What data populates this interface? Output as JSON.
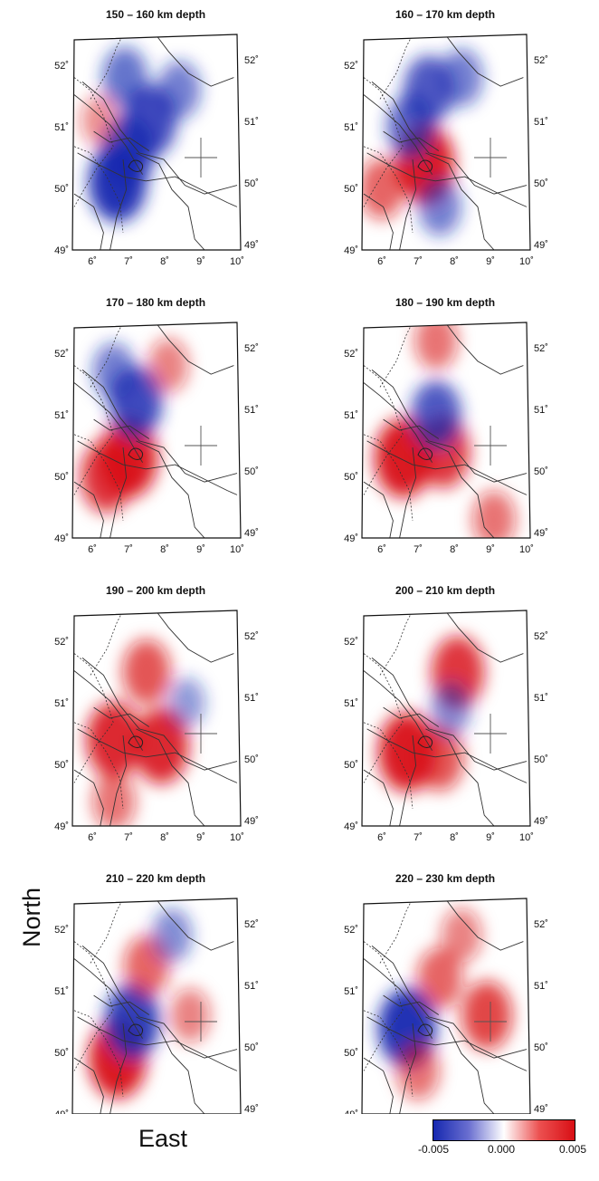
{
  "figure": {
    "north_label": "North",
    "east_label": "East",
    "panels": [
      {
        "title": "150 – 160 km depth",
        "anomalies": [
          {
            "lon": 6.7,
            "lat": 50.1,
            "value": -0.005
          },
          {
            "lon": 7.0,
            "lat": 50.6,
            "value": -0.004
          },
          {
            "lon": 7.6,
            "lat": 51.1,
            "value": -0.004
          },
          {
            "lon": 6.9,
            "lat": 51.8,
            "value": -0.0025
          },
          {
            "lon": 8.4,
            "lat": 51.6,
            "value": -0.002
          },
          {
            "lon": 6.2,
            "lat": 51.1,
            "value": 0.001
          }
        ]
      },
      {
        "title": "160 – 170 km depth",
        "anomalies": [
          {
            "lon": 7.2,
            "lat": 50.4,
            "value": 0.005
          },
          {
            "lon": 6.0,
            "lat": 50.0,
            "value": 0.0025
          },
          {
            "lon": 7.3,
            "lat": 51.6,
            "value": -0.0035
          },
          {
            "lon": 6.8,
            "lat": 51.0,
            "value": -0.003
          },
          {
            "lon": 8.2,
            "lat": 51.8,
            "value": -0.002
          },
          {
            "lon": 7.6,
            "lat": 49.7,
            "value": -0.002
          }
        ]
      },
      {
        "title": "170 – 180 km depth",
        "anomalies": [
          {
            "lon": 7.0,
            "lat": 50.3,
            "value": 0.005
          },
          {
            "lon": 6.4,
            "lat": 50.0,
            "value": 0.004
          },
          {
            "lon": 7.2,
            "lat": 51.2,
            "value": -0.004
          },
          {
            "lon": 6.6,
            "lat": 51.7,
            "value": -0.002
          },
          {
            "lon": 8.1,
            "lat": 51.8,
            "value": 0.0015
          }
        ]
      },
      {
        "title": "180 – 190 km depth",
        "anomalies": [
          {
            "lon": 6.6,
            "lat": 50.3,
            "value": 0.005
          },
          {
            "lon": 7.7,
            "lat": 50.4,
            "value": 0.004
          },
          {
            "lon": 7.5,
            "lat": 51.0,
            "value": -0.0035
          },
          {
            "lon": 9.1,
            "lat": 49.3,
            "value": 0.002
          },
          {
            "lon": 7.5,
            "lat": 52.2,
            "value": 0.002
          }
        ]
      },
      {
        "title": "190 – 200 km depth",
        "anomalies": [
          {
            "lon": 6.6,
            "lat": 50.4,
            "value": 0.0045
          },
          {
            "lon": 7.9,
            "lat": 50.3,
            "value": 0.0045
          },
          {
            "lon": 7.5,
            "lat": 51.5,
            "value": 0.003
          },
          {
            "lon": 6.6,
            "lat": 49.4,
            "value": 0.002
          },
          {
            "lon": 8.6,
            "lat": 51.0,
            "value": -0.001
          }
        ]
      },
      {
        "title": "200 – 210 km depth",
        "anomalies": [
          {
            "lon": 6.7,
            "lat": 50.2,
            "value": 0.005
          },
          {
            "lon": 8.1,
            "lat": 51.5,
            "value": 0.004
          },
          {
            "lon": 7.6,
            "lat": 50.1,
            "value": 0.003
          },
          {
            "lon": 7.9,
            "lat": 50.9,
            "value": -0.0015
          }
        ]
      },
      {
        "title": "210 – 220 km depth",
        "anomalies": [
          {
            "lon": 6.7,
            "lat": 49.9,
            "value": 0.005
          },
          {
            "lon": 7.1,
            "lat": 50.5,
            "value": -0.0045
          },
          {
            "lon": 7.5,
            "lat": 51.4,
            "value": 0.0025
          },
          {
            "lon": 8.2,
            "lat": 51.9,
            "value": -0.0015
          },
          {
            "lon": 8.7,
            "lat": 50.6,
            "value": 0.0015
          }
        ]
      },
      {
        "title": "220 – 230 km depth",
        "anomalies": [
          {
            "lon": 6.7,
            "lat": 50.4,
            "value": -0.005
          },
          {
            "lon": 8.9,
            "lat": 50.6,
            "value": 0.0035
          },
          {
            "lon": 7.6,
            "lat": 51.2,
            "value": 0.0025
          },
          {
            "lon": 7.0,
            "lat": 49.7,
            "value": 0.002
          },
          {
            "lon": 8.2,
            "lat": 51.9,
            "value": 0.0015
          }
        ]
      }
    ],
    "x_ticks": [
      "6˚",
      "7˚",
      "8˚",
      "9˚",
      "10˚"
    ],
    "x_tick_lons": [
      6,
      7,
      8,
      9,
      10
    ],
    "y_ticks_left": [
      "52˚",
      "51˚",
      "50˚",
      "49˚"
    ],
    "y_ticks_right": [
      "52˚",
      "51˚",
      "50˚",
      "49˚"
    ],
    "y_tick_lats": [
      52,
      51,
      50,
      49
    ],
    "lon_range": [
      5.5,
      10
    ],
    "lat_range": [
      49,
      52.5
    ],
    "cross_marker": {
      "lon": 9.0,
      "lat": 50.5
    },
    "colorbar": {
      "ticks": [
        "-0.005",
        "0.000",
        "0.005"
      ],
      "min_color": "#1628b0",
      "mid_color": "#ffffff",
      "max_color": "#d80f15"
    }
  }
}
